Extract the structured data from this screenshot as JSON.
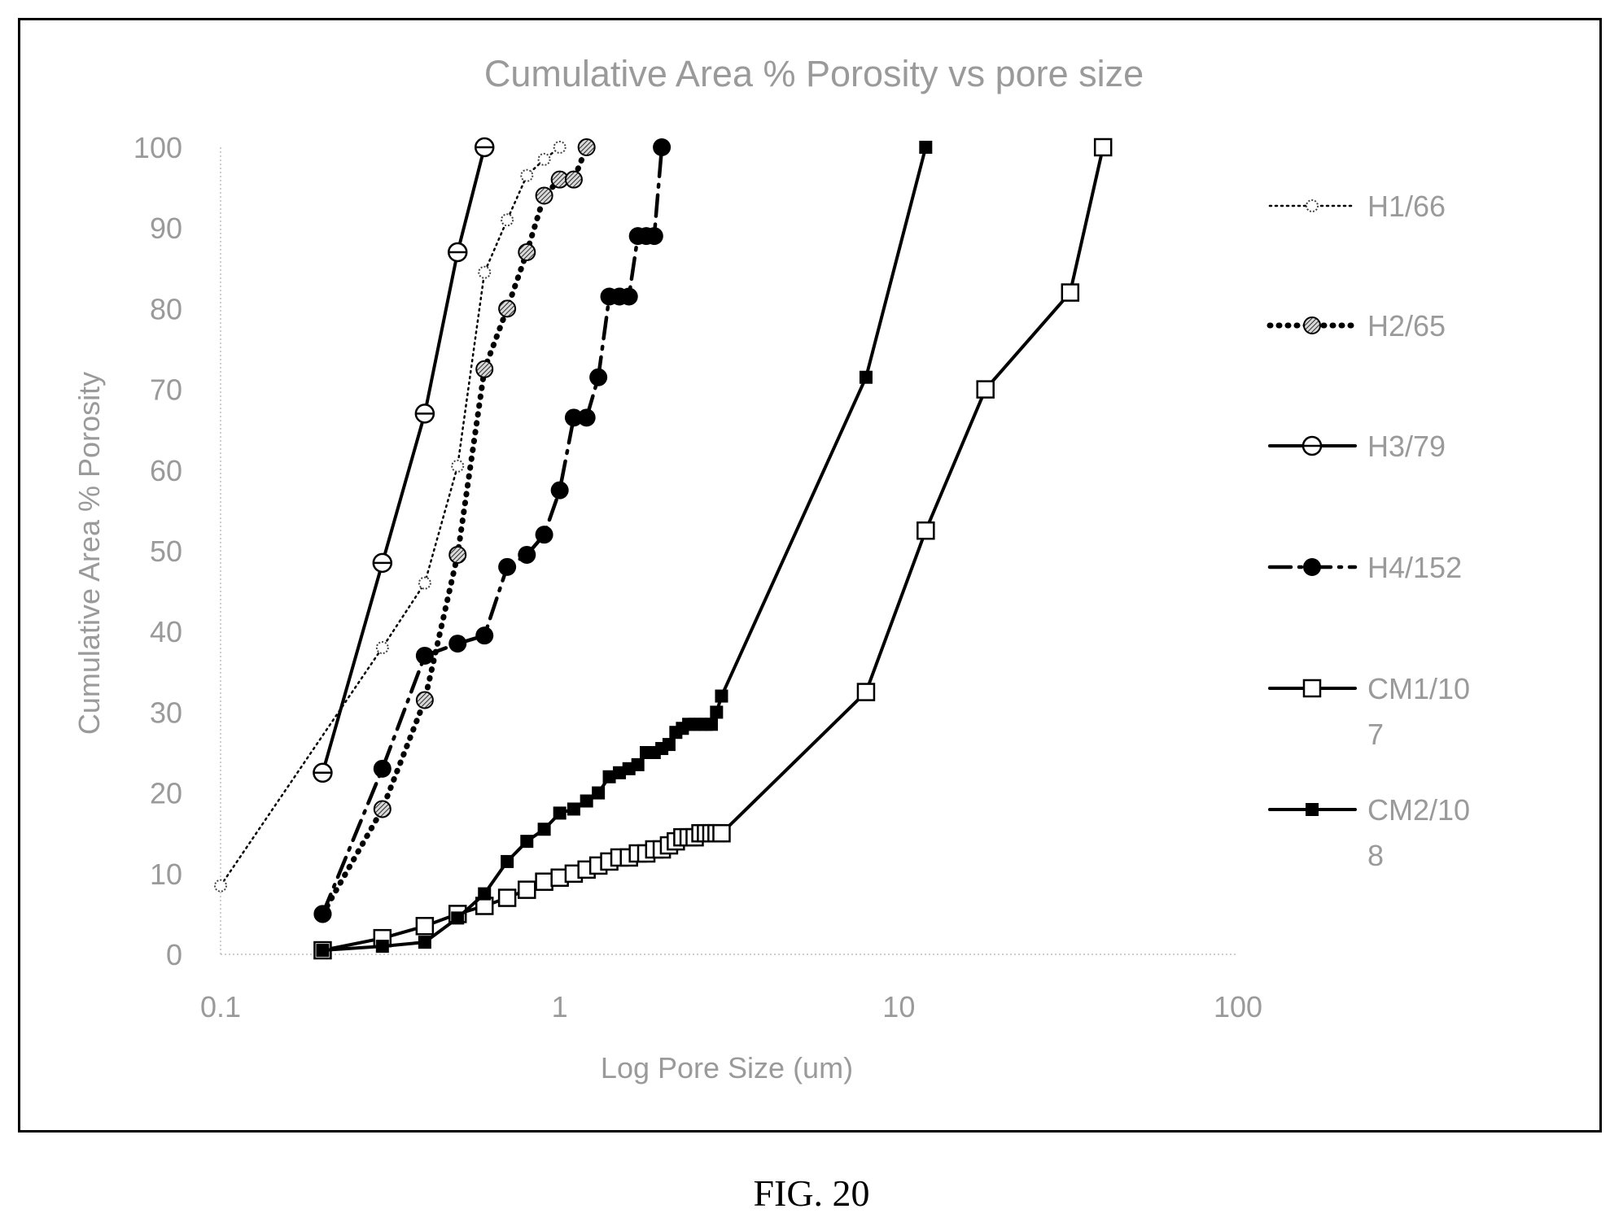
{
  "figure_caption": "FIG. 20",
  "chart_data": {
    "type": "line",
    "title": "Cumulative Area % Porosity vs pore size",
    "xlabel": "Log Pore Size (um)",
    "ylabel": "Cumulative Area % Porosity",
    "xscale": "log",
    "xlim": [
      0.1,
      100
    ],
    "ylim": [
      0,
      100
    ],
    "x_ticks": [
      "0.1",
      "1",
      "10",
      "100"
    ],
    "y_ticks": [
      "0",
      "10",
      "20",
      "30",
      "40",
      "50",
      "60",
      "70",
      "80",
      "90",
      "100"
    ],
    "grid": false,
    "legend_position": "right",
    "series": [
      {
        "name": "H1/66",
        "legend_label_lines": [
          "H1/66"
        ],
        "line": "dotted",
        "marker": "small-dotted-circle",
        "x": [
          0.1,
          0.3,
          0.4,
          0.5,
          0.6,
          0.7,
          0.8,
          0.9,
          1.0
        ],
        "y": [
          8.5,
          38,
          46,
          60.5,
          84.5,
          91,
          96.5,
          98.5,
          100
        ]
      },
      {
        "name": "H2/65",
        "legend_label_lines": [
          "H2/65"
        ],
        "line": "heavy-dotted",
        "marker": "hatched-circle",
        "x": [
          0.2,
          0.3,
          0.4,
          0.5,
          0.6,
          0.7,
          0.8,
          0.9,
          1.0,
          1.1,
          1.2
        ],
        "y": [
          5,
          18,
          31.5,
          49.5,
          72.5,
          80,
          87,
          94,
          96,
          96,
          100
        ]
      },
      {
        "name": "H3/79",
        "legend_label_lines": [
          "H3/79"
        ],
        "line": "solid",
        "marker": "open-circle-bar",
        "x": [
          0.2,
          0.3,
          0.4,
          0.5,
          0.6
        ],
        "y": [
          22.5,
          48.5,
          67,
          87,
          100
        ]
      },
      {
        "name": "H4/152",
        "legend_label_lines": [
          "H4/152"
        ],
        "line": "dash-dot",
        "marker": "filled-circle",
        "x": [
          0.2,
          0.3,
          0.4,
          0.5,
          0.6,
          0.7,
          0.8,
          0.9,
          1.0,
          1.1,
          1.2,
          1.3,
          1.4,
          1.5,
          1.6,
          1.7,
          1.8,
          1.9,
          2.0
        ],
        "y": [
          5,
          23,
          37,
          38.5,
          39.5,
          48,
          49.5,
          52,
          57.5,
          66.5,
          66.5,
          71.5,
          81.5,
          81.5,
          81.5,
          89,
          89,
          89,
          100
        ]
      },
      {
        "name": "CM1/107",
        "legend_label_lines": [
          "CM1/10",
          "7"
        ],
        "line": "solid",
        "marker": "open-square",
        "x": [
          0.2,
          0.3,
          0.4,
          0.5,
          0.6,
          0.7,
          0.8,
          0.9,
          1.0,
          1.1,
          1.2,
          1.3,
          1.4,
          1.5,
          1.6,
          1.7,
          1.8,
          1.9,
          2.0,
          2.1,
          2.2,
          2.3,
          2.4,
          2.5,
          2.6,
          2.7,
          2.8,
          2.9,
          3.0,
          8.0,
          12.0,
          18.0,
          32.0,
          40.0
        ],
        "y": [
          0.5,
          2,
          3.5,
          5,
          6,
          7,
          8,
          9,
          9.5,
          10,
          10.5,
          11,
          11.5,
          12,
          12,
          12.5,
          12.5,
          13,
          13,
          13.5,
          14,
          14.5,
          14.5,
          14.5,
          15,
          15,
          15,
          15,
          15,
          32.5,
          52.5,
          70,
          82,
          100
        ]
      },
      {
        "name": "CM2/108",
        "legend_label_lines": [
          "CM2/10",
          "8"
        ],
        "line": "solid",
        "marker": "filled-square",
        "x": [
          0.2,
          0.3,
          0.4,
          0.5,
          0.6,
          0.7,
          0.8,
          0.9,
          1.0,
          1.1,
          1.2,
          1.3,
          1.4,
          1.5,
          1.6,
          1.7,
          1.8,
          1.9,
          2.0,
          2.1,
          2.2,
          2.3,
          2.4,
          2.5,
          2.6,
          2.7,
          2.8,
          2.9,
          3.0,
          8.0,
          12.0
        ],
        "y": [
          0.5,
          1,
          1.5,
          4.5,
          7.5,
          11.5,
          14,
          15.5,
          17.5,
          18,
          19,
          20,
          22,
          22.5,
          23,
          23.5,
          25,
          25,
          25.5,
          26,
          27.5,
          28,
          28.5,
          28.5,
          28.5,
          28.5,
          28.5,
          30,
          32,
          71.5,
          100
        ]
      }
    ]
  }
}
